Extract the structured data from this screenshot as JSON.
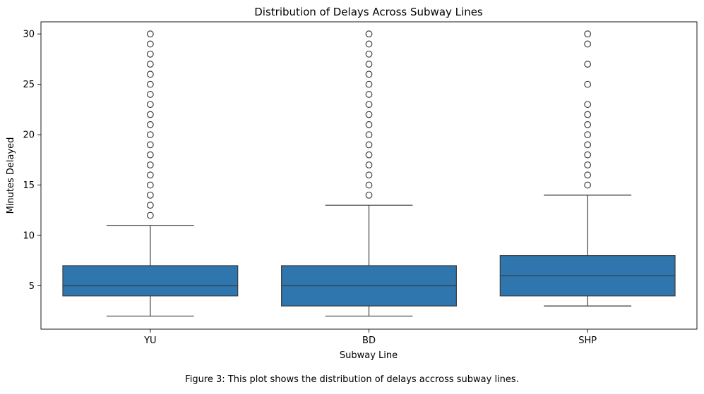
{
  "chart_data": {
    "type": "box",
    "title": "Distribution of Delays Across Subway Lines",
    "xlabel": "Subway Line",
    "ylabel": "Minutes Delayed",
    "ylim": [
      0.7,
      31.2
    ],
    "yticks": [
      5,
      10,
      15,
      20,
      25,
      30
    ],
    "grid": false,
    "box_color": "#2e76ad",
    "edge_color": "#3d3d3d",
    "categories": [
      "YU",
      "BD",
      "SHP"
    ],
    "boxes": [
      {
        "category": "YU",
        "whisker_low": 2,
        "q1": 4,
        "median": 5,
        "q3": 7,
        "whisker_high": 11,
        "outliers": [
          12,
          13,
          14,
          15,
          16,
          17,
          18,
          19,
          20,
          21,
          22,
          23,
          24,
          25,
          26,
          27,
          28,
          29,
          30
        ]
      },
      {
        "category": "BD",
        "whisker_low": 2,
        "q1": 3,
        "median": 5,
        "q3": 7,
        "whisker_high": 13,
        "outliers": [
          14,
          15,
          16,
          17,
          18,
          19,
          20,
          21,
          22,
          23,
          24,
          25,
          26,
          27,
          28,
          29,
          30
        ]
      },
      {
        "category": "SHP",
        "whisker_low": 3,
        "q1": 4,
        "median": 6,
        "q3": 8,
        "whisker_high": 14,
        "outliers": [
          15,
          16,
          17,
          18,
          19,
          20,
          21,
          22,
          23,
          25,
          27,
          29,
          30
        ]
      }
    ]
  },
  "caption": "Figure 3: This plot shows the distribution of delays accross subway lines."
}
